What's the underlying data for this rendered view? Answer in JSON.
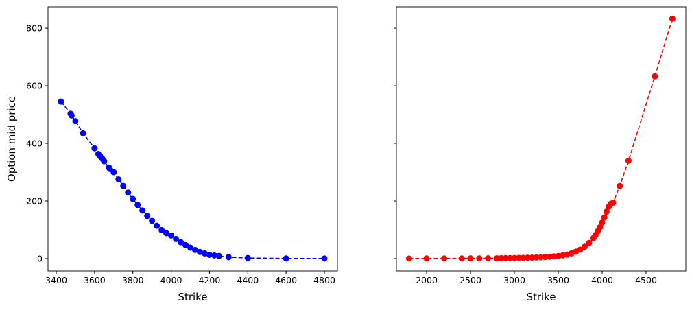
{
  "chart_data": [
    {
      "type": "line",
      "ylabel": "Option mid price",
      "xlabel": "Strike",
      "xlim": [
        3357,
        4868
      ],
      "xticks": [
        3400,
        3600,
        3800,
        4000,
        4200,
        4400,
        4600,
        4800
      ],
      "ylim": [
        -43,
        874
      ],
      "yticks": [
        0,
        200,
        400,
        600,
        800
      ],
      "series": [
        {
          "color": "#0000ff",
          "x": [
            3425,
            3475,
            3480,
            3500,
            3540,
            3600,
            3620,
            3630,
            3640,
            3650,
            3675,
            3680,
            3700,
            3725,
            3750,
            3775,
            3800,
            3825,
            3850,
            3875,
            3900,
            3925,
            3950,
            3975,
            4000,
            4025,
            4050,
            4075,
            4100,
            4125,
            4150,
            4175,
            4200,
            4225,
            4250,
            4300,
            4400,
            4600,
            4800
          ],
          "values": [
            545,
            503,
            497,
            477,
            435,
            383,
            363,
            355,
            347,
            338,
            316,
            311,
            300,
            275,
            252,
            229,
            207,
            186,
            167,
            148,
            131,
            114,
            99,
            88,
            80,
            68,
            57,
            47,
            38,
            30,
            23,
            18,
            13,
            11,
            9,
            5,
            2,
            0.5,
            0.3
          ]
        }
      ]
    },
    {
      "type": "line",
      "xlabel": "Strike",
      "xlim": [
        1656,
        4953
      ],
      "xticks": [
        2000,
        2500,
        3000,
        3500,
        4000,
        4500
      ],
      "ylim": [
        -43,
        874
      ],
      "yticks": [
        0,
        200,
        400,
        600,
        800
      ],
      "series": [
        {
          "color": "#ff0000",
          "x": [
            1800,
            2000,
            2200,
            2400,
            2500,
            2600,
            2700,
            2800,
            2850,
            2900,
            2950,
            3000,
            3050,
            3100,
            3150,
            3200,
            3250,
            3300,
            3350,
            3400,
            3450,
            3500,
            3550,
            3600,
            3650,
            3700,
            3750,
            3800,
            3850,
            3900,
            3925,
            3950,
            3975,
            4000,
            4025,
            4050,
            4075,
            4100,
            4125,
            4200,
            4300,
            4600,
            4800
          ],
          "values": [
            0.3,
            0.4,
            0.5,
            0.6,
            0.7,
            0.8,
            1,
            1.2,
            1.4,
            1.6,
            1.8,
            2,
            2.3,
            2.6,
            3,
            3.4,
            4,
            4.6,
            5.4,
            6.3,
            7.5,
            9,
            11,
            14,
            18,
            24,
            31,
            41,
            54,
            71,
            82,
            95,
            109,
            125,
            143,
            163,
            180,
            190,
            194,
            252,
            340,
            633,
            833
          ]
        }
      ]
    }
  ]
}
